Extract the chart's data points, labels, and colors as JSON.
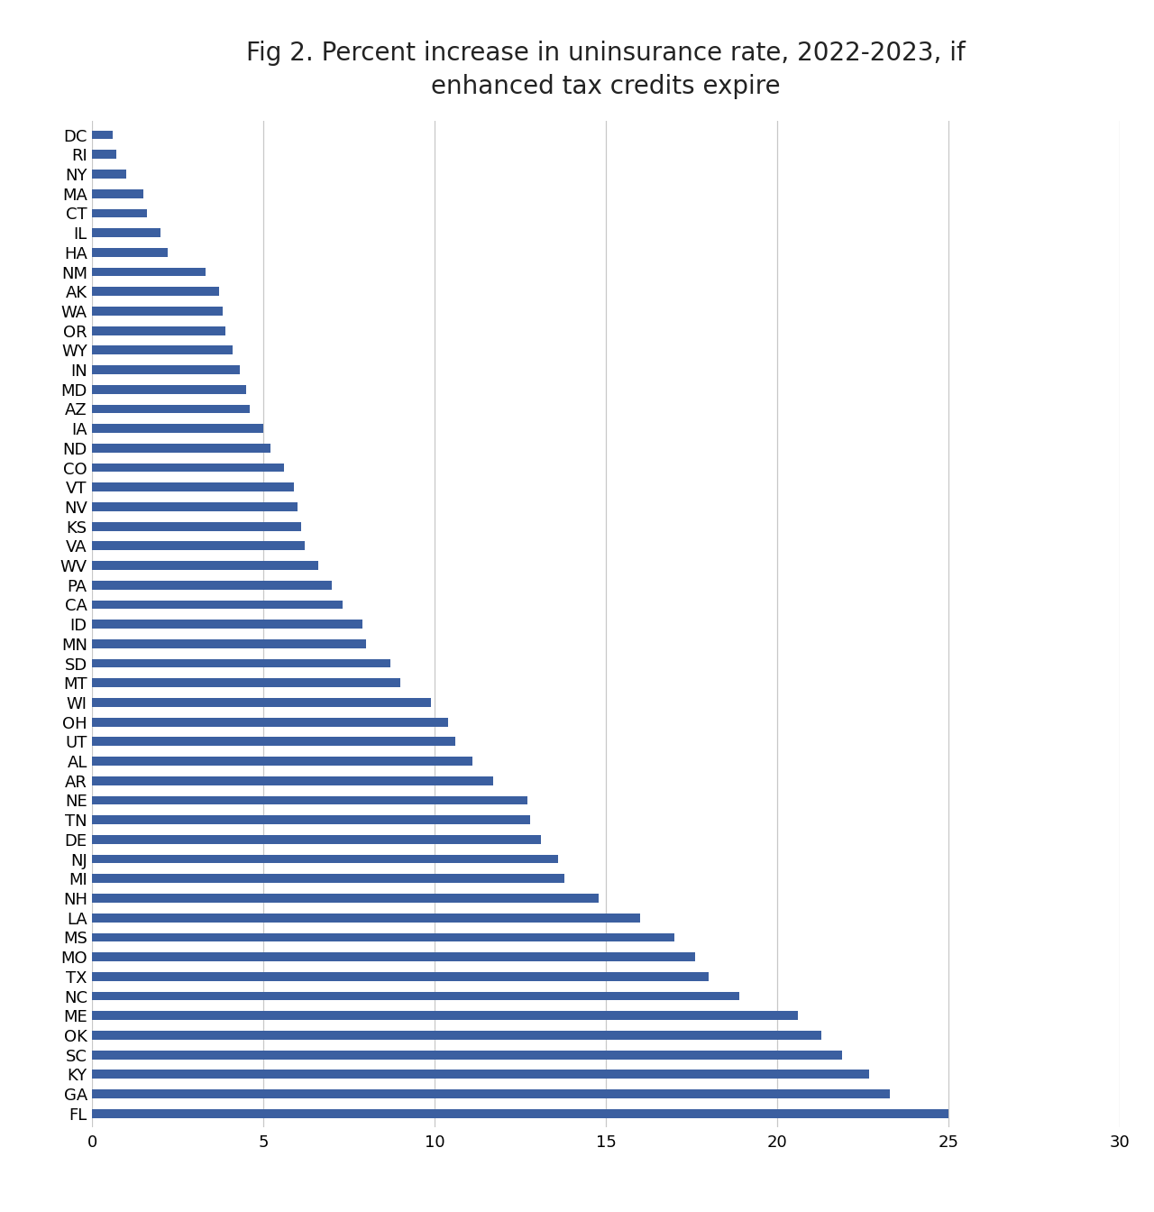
{
  "title": "Fig 2. Percent increase in uninsurance rate, 2022-2023, if\nenhanced tax credits expire",
  "bar_color": "#3B5FA0",
  "categories": [
    "DC",
    "RI",
    "NY",
    "MA",
    "CT",
    "IL",
    "HA",
    "NM",
    "AK",
    "WA",
    "OR",
    "WY",
    "IN",
    "MD",
    "AZ",
    "IA",
    "ND",
    "CO",
    "VT",
    "NV",
    "KS",
    "VA",
    "WV",
    "PA",
    "CA",
    "ID",
    "MN",
    "SD",
    "MT",
    "WI",
    "OH",
    "UT",
    "AL",
    "AR",
    "NE",
    "TN",
    "DE",
    "NJ",
    "MI",
    "NH",
    "LA",
    "MS",
    "MO",
    "TX",
    "NC",
    "ME",
    "OK",
    "SC",
    "KY",
    "GA",
    "FL"
  ],
  "values": [
    0.6,
    0.7,
    1.0,
    1.5,
    1.6,
    2.0,
    2.2,
    3.3,
    3.7,
    3.8,
    3.9,
    4.1,
    4.3,
    4.5,
    4.6,
    5.0,
    5.2,
    5.6,
    5.9,
    6.0,
    6.1,
    6.2,
    6.6,
    7.0,
    7.3,
    7.9,
    8.0,
    8.7,
    9.0,
    9.9,
    10.4,
    10.6,
    11.1,
    11.7,
    12.7,
    12.8,
    13.1,
    13.6,
    13.8,
    14.8,
    16.0,
    17.0,
    17.6,
    18.0,
    18.9,
    20.6,
    21.3,
    21.9,
    22.7,
    23.3,
    25.0
  ],
  "xlim": [
    0,
    30
  ],
  "xticks": [
    0,
    5,
    10,
    15,
    20,
    25,
    30
  ],
  "grid_color": "#c8c8c8",
  "background_color": "#ffffff",
  "title_fontsize": 20,
  "label_fontsize": 13,
  "tick_fontsize": 13,
  "bar_height": 0.45
}
